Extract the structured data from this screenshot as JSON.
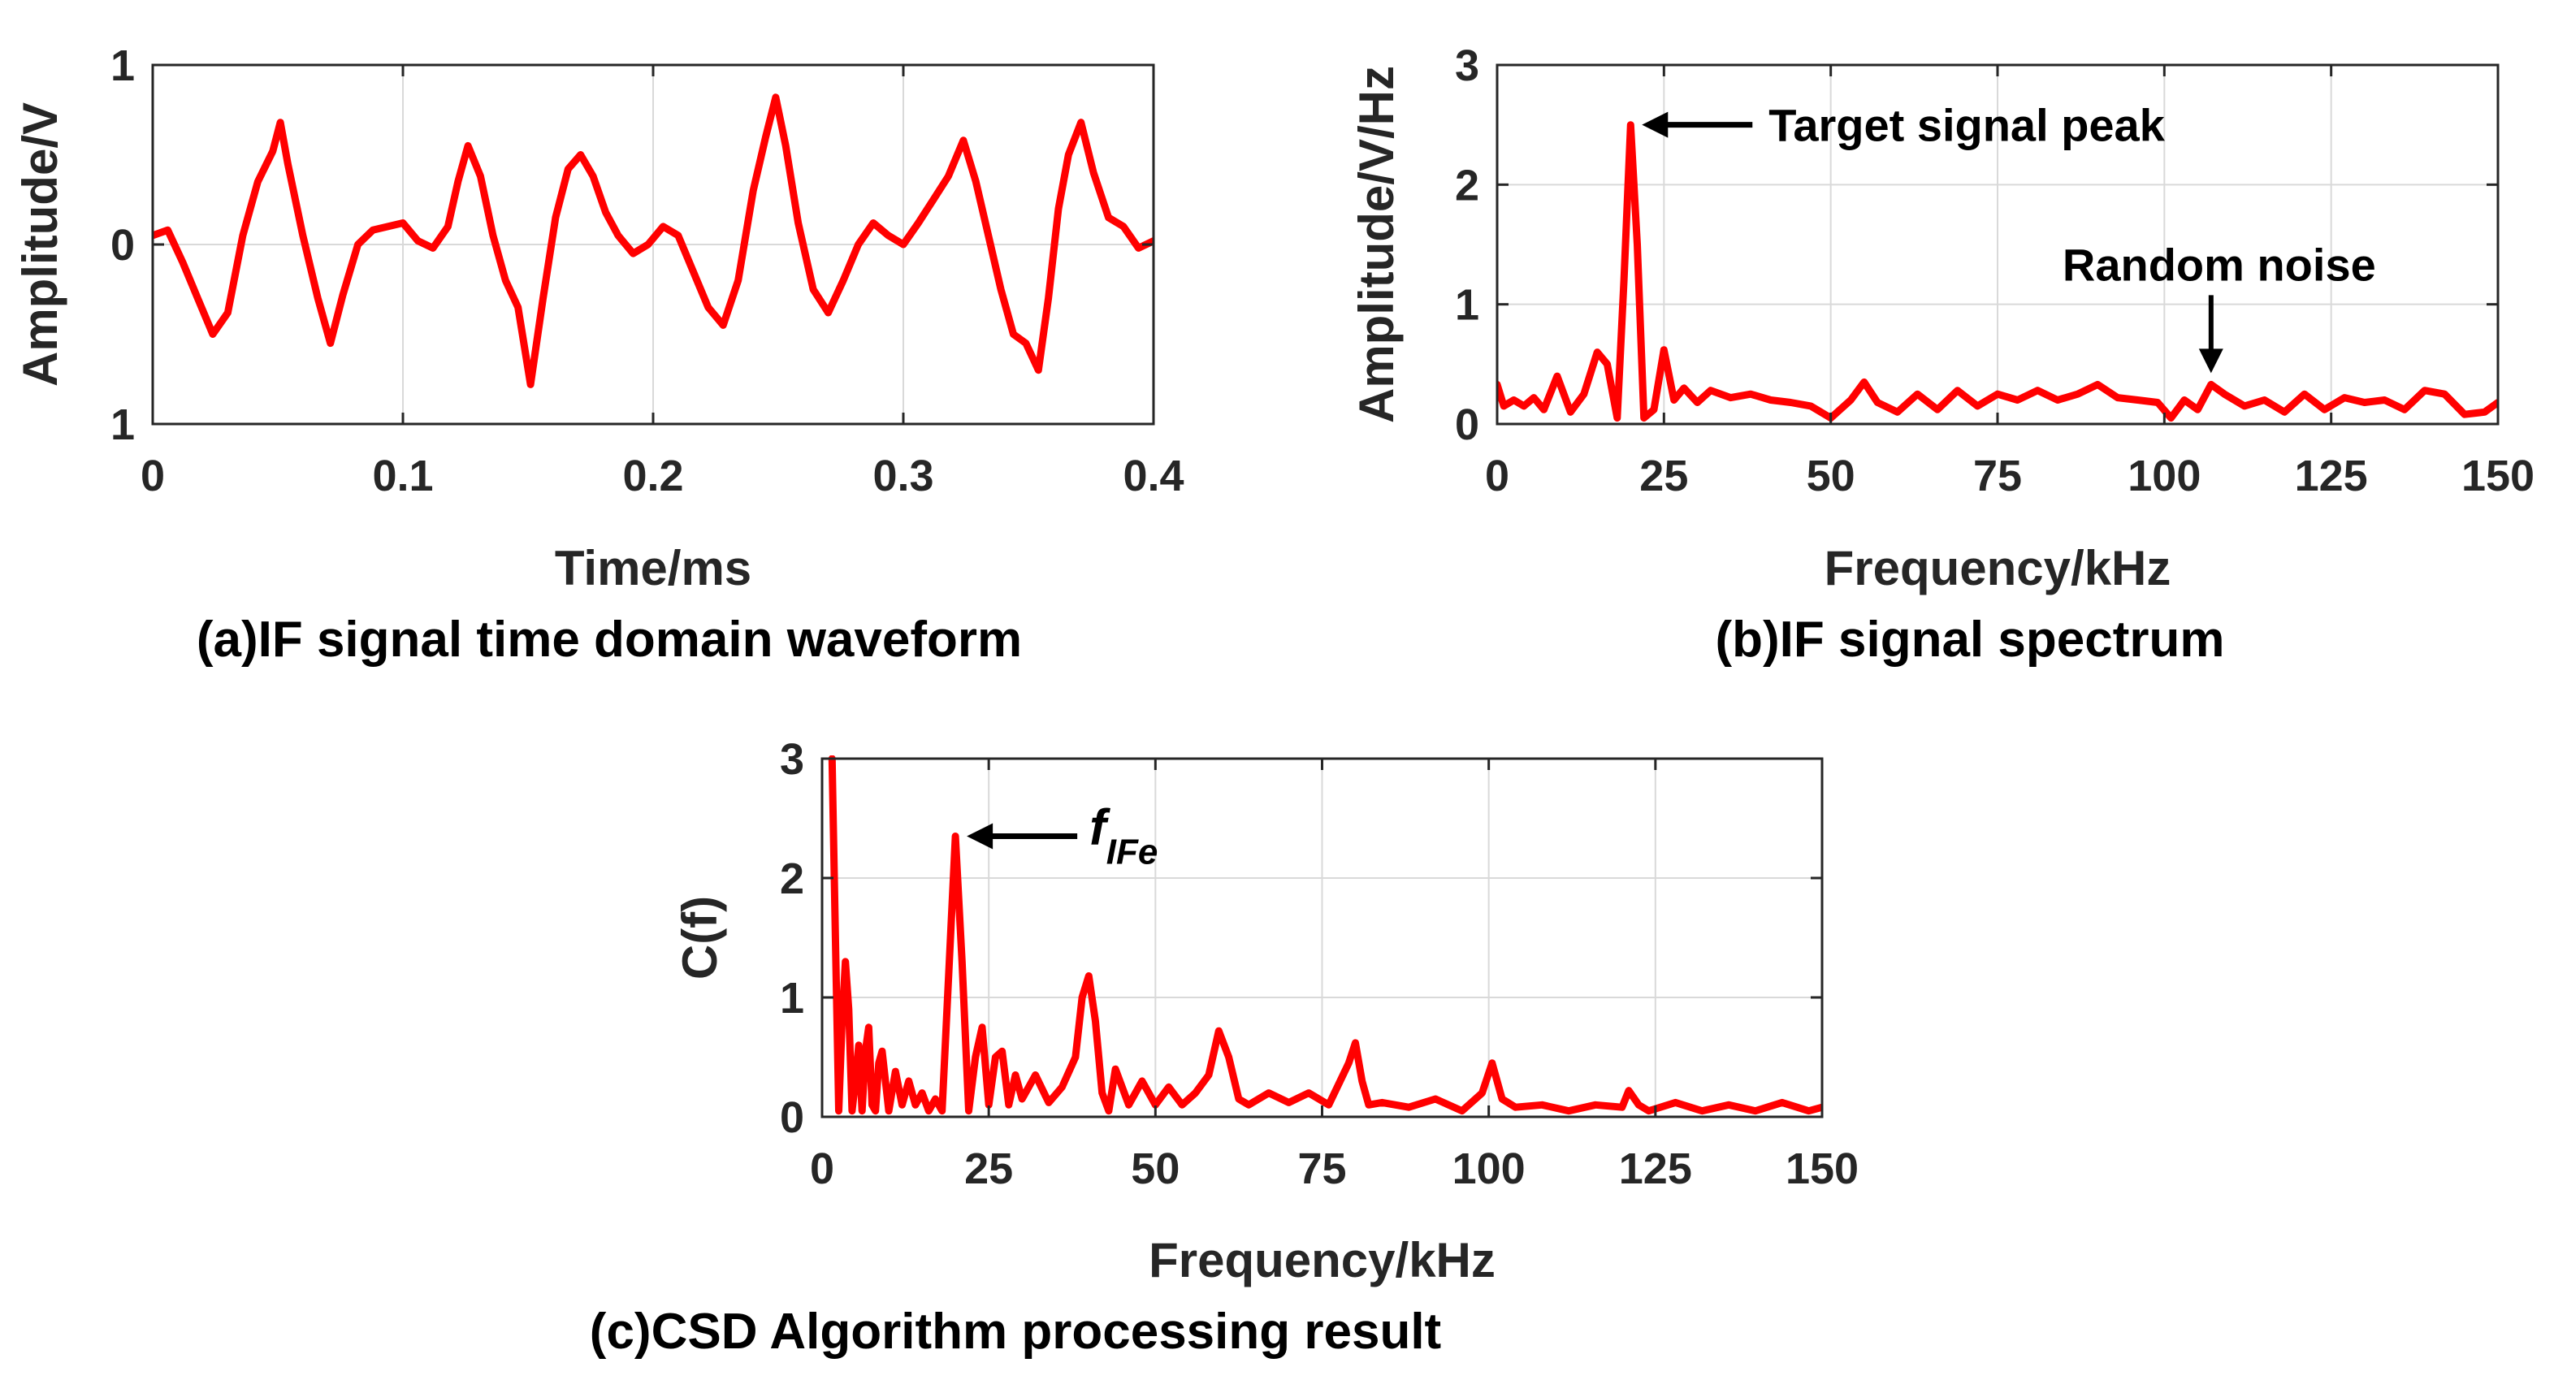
{
  "colors": {
    "series": "#ff0000",
    "axis": "#262626",
    "grid": "#d9d9d9",
    "annotation": "#000000"
  },
  "chart_data": [
    {
      "type": "line",
      "caption": "(a)IF signal time domain waveform",
      "xlabel": "Time/ms",
      "ylabel": "Amplitude/V",
      "xlim": [
        0,
        0.4
      ],
      "ylim": [
        -1,
        1
      ],
      "xticks": [
        0,
        0.1,
        0.2,
        0.3,
        0.4
      ],
      "xtick_labels": [
        "0",
        "0.1",
        "0.2",
        "0.3",
        "0.4"
      ],
      "yticks": [
        -1,
        0,
        1
      ],
      "ytick_labels": [
        "1",
        "0",
        "1"
      ],
      "grid": true,
      "series": [
        {
          "x": [
            0,
            0.006,
            0.012,
            0.018,
            0.024,
            0.03,
            0.036,
            0.042,
            0.048,
            0.051,
            0.054,
            0.06,
            0.066,
            0.071,
            0.076,
            0.082,
            0.088,
            0.094,
            0.1,
            0.106,
            0.112,
            0.118,
            0.122,
            0.126,
            0.131,
            0.136,
            0.141,
            0.146,
            0.151,
            0.156,
            0.161,
            0.166,
            0.171,
            0.176,
            0.181,
            0.186,
            0.192,
            0.198,
            0.204,
            0.21,
            0.216,
            0.222,
            0.228,
            0.234,
            0.24,
            0.245,
            0.249,
            0.253,
            0.258,
            0.264,
            0.27,
            0.276,
            0.282,
            0.288,
            0.294,
            0.3,
            0.306,
            0.312,
            0.318,
            0.324,
            0.329,
            0.334,
            0.339,
            0.344,
            0.349,
            0.354,
            0.358,
            0.362,
            0.366,
            0.371,
            0.376,
            0.382,
            0.388,
            0.394,
            0.4
          ],
          "y": [
            0.05,
            0.08,
            -0.1,
            -0.3,
            -0.5,
            -0.38,
            0.05,
            0.35,
            0.52,
            0.68,
            0.45,
            0.05,
            -0.3,
            -0.55,
            -0.28,
            0.0,
            0.08,
            0.1,
            0.12,
            0.02,
            -0.02,
            0.1,
            0.35,
            0.55,
            0.38,
            0.05,
            -0.2,
            -0.35,
            -0.78,
            -0.3,
            0.15,
            0.42,
            0.5,
            0.38,
            0.18,
            0.05,
            -0.05,
            0.0,
            0.1,
            0.05,
            -0.15,
            -0.35,
            -0.45,
            -0.2,
            0.3,
            0.6,
            0.82,
            0.55,
            0.12,
            -0.25,
            -0.38,
            -0.2,
            0.0,
            0.12,
            0.05,
            0.0,
            0.12,
            0.25,
            0.38,
            0.58,
            0.35,
            0.05,
            -0.25,
            -0.5,
            -0.55,
            -0.7,
            -0.3,
            0.2,
            0.5,
            0.68,
            0.4,
            0.15,
            0.1,
            -0.02,
            0.02
          ]
        }
      ]
    },
    {
      "type": "line",
      "caption": "(b)IF signal spectrum",
      "xlabel": "Frequency/kHz",
      "ylabel": "Amplitude/V/Hz",
      "xlim": [
        0,
        150
      ],
      "ylim": [
        0,
        3
      ],
      "xticks": [
        0,
        25,
        50,
        75,
        100,
        125,
        150
      ],
      "xtick_labels": [
        "0",
        "25",
        "50",
        "75",
        "100",
        "125",
        "150"
      ],
      "yticks": [
        0,
        1,
        2,
        3
      ],
      "ytick_labels": [
        "0",
        "1",
        "2",
        "3"
      ],
      "grid": true,
      "annotations": [
        {
          "text": "Target signal peak",
          "x": 20,
          "y": 2.5
        },
        {
          "text": "Random noise",
          "x": 107,
          "y": 0.33
        }
      ],
      "series": [
        {
          "x": [
            0,
            1,
            2.5,
            4,
            5.5,
            7,
            9,
            11,
            13,
            15,
            16.5,
            18,
            19,
            20,
            21,
            22,
            23.5,
            25,
            26.5,
            28,
            30,
            32,
            35,
            38,
            41,
            44,
            47,
            50,
            53,
            55,
            57,
            60,
            63,
            66,
            69,
            72,
            75,
            78,
            81,
            84,
            87,
            90,
            93,
            96,
            99,
            101,
            103,
            105,
            107,
            109,
            112,
            115,
            118,
            121,
            124,
            127,
            130,
            133,
            136,
            139,
            142,
            145,
            148,
            150
          ],
          "y": [
            0.33,
            0.15,
            0.2,
            0.15,
            0.22,
            0.12,
            0.4,
            0.1,
            0.25,
            0.6,
            0.5,
            0.05,
            1.2,
            2.5,
            1.5,
            0.05,
            0.12,
            0.62,
            0.2,
            0.3,
            0.18,
            0.28,
            0.22,
            0.25,
            0.2,
            0.18,
            0.15,
            0.05,
            0.2,
            0.35,
            0.18,
            0.1,
            0.25,
            0.12,
            0.28,
            0.15,
            0.25,
            0.2,
            0.28,
            0.2,
            0.25,
            0.33,
            0.22,
            0.2,
            0.18,
            0.05,
            0.2,
            0.12,
            0.33,
            0.25,
            0.15,
            0.2,
            0.1,
            0.25,
            0.12,
            0.22,
            0.18,
            0.2,
            0.12,
            0.28,
            0.25,
            0.08,
            0.1,
            0.18
          ]
        }
      ]
    },
    {
      "type": "line",
      "caption": "(c)CSD Algorithm processing result",
      "xlabel": "Frequency/kHz",
      "ylabel": "C(f)",
      "xlim": [
        0,
        150
      ],
      "ylim": [
        0,
        3
      ],
      "xticks": [
        0,
        25,
        50,
        75,
        100,
        125,
        150
      ],
      "xtick_labels": [
        "0",
        "25",
        "50",
        "75",
        "100",
        "125",
        "150"
      ],
      "yticks": [
        0,
        1,
        2,
        3
      ],
      "ytick_labels": [
        "0",
        "1",
        "2",
        "3"
      ],
      "grid": true,
      "annotations": [
        {
          "text": "f",
          "subscript": "IFe",
          "x": 20,
          "y": 2.35
        }
      ],
      "series": [
        {
          "x": [
            1.5,
            2,
            2.5,
            3,
            3.5,
            4,
            4.5,
            5,
            5.5,
            6,
            6.5,
            7,
            7.5,
            8,
            8.5,
            9,
            10,
            11,
            12,
            13,
            14,
            15,
            16,
            17,
            18,
            19,
            20,
            21,
            22,
            23,
            24,
            25,
            26,
            27,
            28,
            29,
            30,
            32,
            34,
            36,
            38,
            39,
            40,
            41,
            42,
            43,
            44,
            46,
            48,
            50,
            52,
            54,
            56,
            58,
            59.5,
            61,
            62.5,
            64,
            67,
            70,
            73,
            76,
            79,
            80,
            81,
            82,
            84,
            88,
            92,
            96,
            99,
            100.5,
            102,
            104,
            108,
            112,
            116,
            120,
            121,
            122.5,
            124,
            128,
            132,
            136,
            140,
            144,
            148,
            150
          ],
          "y": [
            3.0,
            1.5,
            0.05,
            0.8,
            1.3,
            0.9,
            0.05,
            0.3,
            0.6,
            0.05,
            0.55,
            0.75,
            0.1,
            0.05,
            0.45,
            0.55,
            0.05,
            0.38,
            0.1,
            0.3,
            0.1,
            0.2,
            0.05,
            0.15,
            0.05,
            1.2,
            2.35,
            1.3,
            0.05,
            0.5,
            0.75,
            0.1,
            0.5,
            0.55,
            0.1,
            0.35,
            0.15,
            0.35,
            0.12,
            0.25,
            0.5,
            1.0,
            1.18,
            0.8,
            0.2,
            0.05,
            0.4,
            0.1,
            0.3,
            0.1,
            0.25,
            0.1,
            0.2,
            0.35,
            0.72,
            0.5,
            0.15,
            0.1,
            0.2,
            0.12,
            0.2,
            0.1,
            0.45,
            0.62,
            0.3,
            0.1,
            0.12,
            0.08,
            0.15,
            0.05,
            0.2,
            0.45,
            0.15,
            0.08,
            0.1,
            0.05,
            0.1,
            0.08,
            0.22,
            0.1,
            0.05,
            0.12,
            0.05,
            0.1,
            0.05,
            0.12,
            0.05,
            0.08
          ]
        }
      ]
    }
  ]
}
